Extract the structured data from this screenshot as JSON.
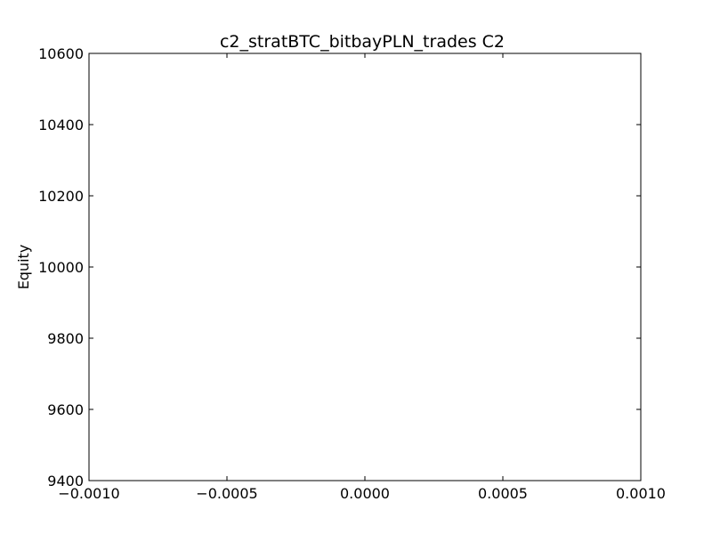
{
  "chart_data": {
    "type": "line",
    "title": "c2_stratBTC_bitbayPLN_trades C2",
    "xlabel": "",
    "ylabel": "Equity",
    "xlim": [
      -0.001,
      0.001
    ],
    "ylim": [
      9400,
      10600
    ],
    "x_ticks": [
      -0.001,
      -0.0005,
      0.0,
      0.0005,
      0.001
    ],
    "x_tick_labels": [
      "−0.0010",
      "−0.0005",
      "0.0000",
      "0.0005",
      "0.0010"
    ],
    "y_ticks": [
      9400,
      9600,
      9800,
      10000,
      10200,
      10400,
      10600
    ],
    "y_tick_labels": [
      "9400",
      "9600",
      "9800",
      "10000",
      "10200",
      "10400",
      "10600"
    ],
    "series": [],
    "grid": false,
    "colors": {
      "axes": "#000000",
      "background": "#ffffff"
    }
  }
}
